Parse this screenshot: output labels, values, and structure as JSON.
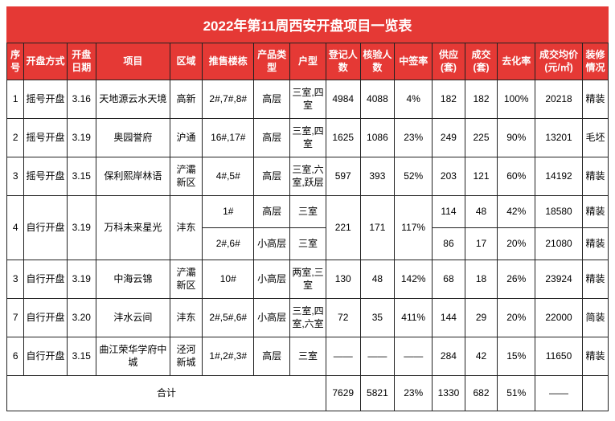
{
  "colors": {
    "header_bg": "#e53935",
    "header_fg": "#ffffff",
    "border": "#222222"
  },
  "title": "2022年第11周西安开盘项目一览表",
  "columns": [
    "序号",
    "开盘方式",
    "开盘日期",
    "项目",
    "区域",
    "推售楼栋",
    "产品类型",
    "户型",
    "登记人数",
    "核验人数",
    "中签率",
    "供应(套)",
    "成交(套)",
    "去化率",
    "成交均价(元/㎡)",
    "装修情况"
  ],
  "rows": [
    {
      "seq": "1",
      "mode": "摇号开盘",
      "date": "3.16",
      "project": "天地源云水天境",
      "area": "高新",
      "bldg": "2#,7#,8#",
      "ptype": "高层",
      "htype": "三室,四室",
      "reg": "4984",
      "chk": "4088",
      "hit": "4%",
      "supply": "182",
      "deal": "182",
      "rate": "100%",
      "price": "20218",
      "deco": "精装"
    },
    {
      "seq": "2",
      "mode": "摇号开盘",
      "date": "3.19",
      "project": "奥园誉府",
      "area": "沪通",
      "bldg": "16#,17#",
      "ptype": "高层",
      "htype": "三室,四室",
      "reg": "1625",
      "chk": "1086",
      "hit": "23%",
      "supply": "249",
      "deal": "225",
      "rate": "90%",
      "price": "13201",
      "deco": "毛坯"
    },
    {
      "seq": "3",
      "mode": "摇号开盘",
      "date": "3.15",
      "project": "保利熙岸林语",
      "area": "浐灞新区",
      "bldg": "4#,5#",
      "ptype": "高层",
      "htype": "三室,六室,跃层",
      "reg": "597",
      "chk": "393",
      "hit": "52%",
      "supply": "203",
      "deal": "121",
      "rate": "60%",
      "price": "14192",
      "deco": "精装"
    },
    {
      "seq": "4",
      "mode": "自行开盘",
      "date": "3.19",
      "project": "万科未来星光",
      "area": "沣东",
      "reg": "221",
      "chk": "171",
      "hit": "117%",
      "deco": "精装",
      "sub": [
        {
          "bldg": "1#",
          "ptype": "高层",
          "htype": "三室",
          "supply": "114",
          "deal": "48",
          "rate": "42%",
          "price": "18580"
        },
        {
          "bldg": "2#,6#",
          "ptype": "小高层",
          "htype": "三室",
          "supply": "86",
          "deal": "17",
          "rate": "20%",
          "price": "21080",
          "deco": "精装"
        }
      ]
    },
    {
      "seq": "3",
      "mode": "自行开盘",
      "date": "3.19",
      "project": "中海云锦",
      "area": "浐灞新区",
      "bldg": "10#",
      "ptype": "小高层",
      "htype": "两室,三室",
      "reg": "130",
      "chk": "48",
      "hit": "142%",
      "supply": "68",
      "deal": "18",
      "rate": "26%",
      "price": "23924",
      "deco": "精装"
    },
    {
      "seq": "7",
      "mode": "自行开盘",
      "date": "3.20",
      "project": "沣水云间",
      "area": "沣东",
      "bldg": "2#,5#,6#",
      "ptype": "小高层",
      "htype": "三室,四室,六室",
      "reg": "72",
      "chk": "35",
      "hit": "411%",
      "supply": "144",
      "deal": "29",
      "rate": "20%",
      "price": "22000",
      "deco": "简装"
    },
    {
      "seq": "6",
      "mode": "自行开盘",
      "date": "3.15",
      "project": "曲江荣华学府中城",
      "area": "泾河新城",
      "bldg": "1#,2#,3#",
      "ptype": "高层",
      "htype": "三室",
      "reg": "——",
      "chk": "——",
      "hit": "——",
      "supply": "284",
      "deal": "42",
      "rate": "15%",
      "price": "11650",
      "deco": "精装"
    }
  ],
  "summary": {
    "label": "合计",
    "reg": "7629",
    "chk": "5821",
    "hit": "23%",
    "supply": "1330",
    "deal": "682",
    "rate": "51%",
    "price": "——",
    "deco": ""
  }
}
